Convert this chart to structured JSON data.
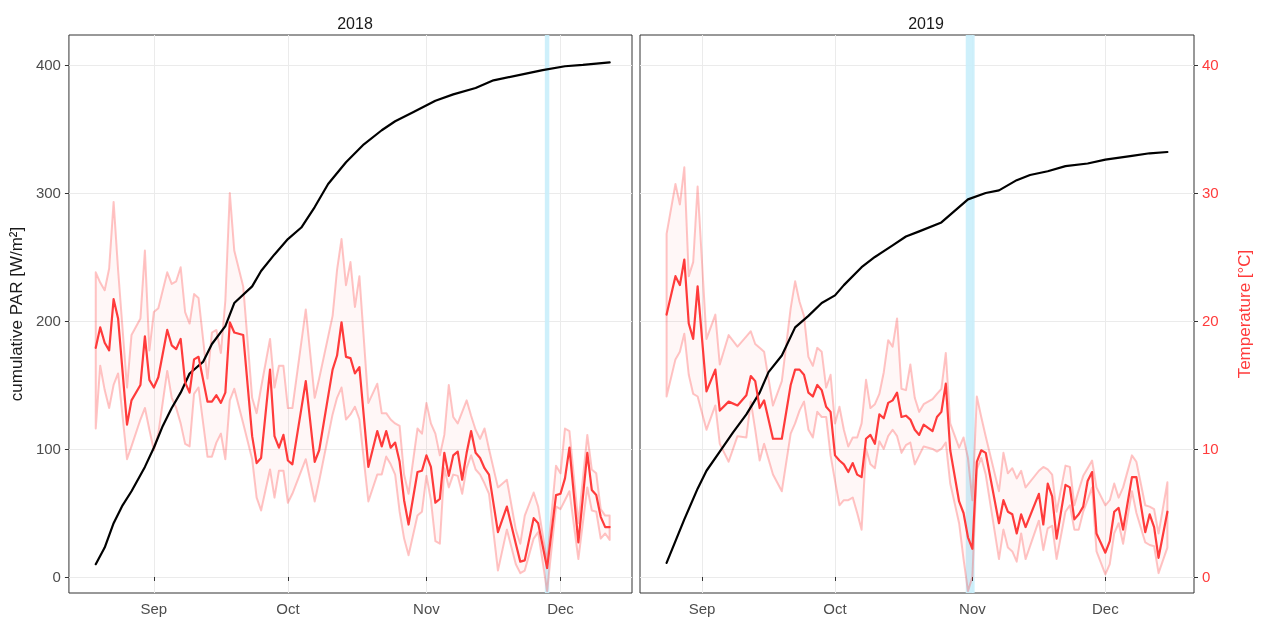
{
  "chart_data": [
    {
      "type": "line",
      "title": "2018",
      "ylabel": "cumulative PAR [W/m²]",
      "xlim": [
        "2018-08-13",
        "2018-12-17"
      ],
      "xticks": [
        {
          "value": "2018-09-01",
          "label": "Sep"
        },
        {
          "value": "2018-10-01",
          "label": "Oct"
        },
        {
          "value": "2018-11-01",
          "label": "Nov"
        },
        {
          "value": "2018-12-01",
          "label": "Dec"
        }
      ],
      "ylim": [
        -12.5,
        423.4
      ],
      "yticks": [
        0,
        100,
        200,
        300,
        400
      ],
      "y2lim": [
        -1.25,
        42.34
      ],
      "grid": true,
      "marker": "none",
      "bands": [
        {
          "axis": "x",
          "from": "2018-11-27T12:00",
          "to": "2018-11-28T12:00",
          "color": "#c9eefb"
        }
      ],
      "series": [
        {
          "color": "#000000",
          "x": [
            "2018-08-19",
            "2018-08-21",
            "2018-08-23",
            "2018-08-25",
            "2018-08-27",
            "2018-08-30",
            "2018-09-01",
            "2018-09-03",
            "2018-09-05",
            "2018-09-07",
            "2018-09-09",
            "2018-09-12",
            "2018-09-14",
            "2018-09-17",
            "2018-09-19",
            "2018-09-23",
            "2018-09-25",
            "2018-09-28",
            "2018-10-01",
            "2018-10-04",
            "2018-10-07",
            "2018-10-10",
            "2018-10-14",
            "2018-10-18",
            "2018-10-22",
            "2018-10-25",
            "2018-10-29",
            "2018-11-03",
            "2018-11-07",
            "2018-11-12",
            "2018-11-16",
            "2018-11-23",
            "2018-11-27",
            "2018-12-02",
            "2018-12-06",
            "2018-12-12"
          ],
          "values": [
            10,
            23,
            42,
            56,
            67,
            86,
            101,
            118,
            132,
            144,
            159,
            168,
            182,
            196,
            214,
            227,
            239,
            252,
            264,
            273,
            289,
            307,
            324,
            338,
            349,
            356,
            363,
            372,
            377,
            382,
            388,
            393,
            396,
            399,
            400,
            402
          ]
        },
        {
          "color": "#ff3b3b",
          "axis": "y2",
          "x": [
            "2018-08-19",
            "2018-08-20",
            "2018-08-21",
            "2018-08-22",
            "2018-08-23",
            "2018-08-24",
            "2018-08-26",
            "2018-08-27",
            "2018-08-29",
            "2018-08-30",
            "2018-08-31",
            "2018-09-01",
            "2018-09-02",
            "2018-09-04",
            "2018-09-05",
            "2018-09-06",
            "2018-09-07",
            "2018-09-08",
            "2018-09-09",
            "2018-09-10",
            "2018-09-11",
            "2018-09-13",
            "2018-09-14",
            "2018-09-15",
            "2018-09-16",
            "2018-09-17",
            "2018-09-18",
            "2018-09-19",
            "2018-09-21",
            "2018-09-23",
            "2018-09-24",
            "2018-09-25",
            "2018-09-27",
            "2018-09-28",
            "2018-09-29",
            "2018-09-30",
            "2018-10-01",
            "2018-10-02",
            "2018-10-05",
            "2018-10-07",
            "2018-10-08",
            "2018-10-11",
            "2018-10-12",
            "2018-10-13",
            "2018-10-14",
            "2018-10-15",
            "2018-10-16",
            "2018-10-17",
            "2018-10-19",
            "2018-10-21",
            "2018-10-22",
            "2018-10-23",
            "2018-10-24",
            "2018-10-25",
            "2018-10-26",
            "2018-10-27",
            "2018-10-28",
            "2018-10-30",
            "2018-10-31",
            "2018-11-01",
            "2018-11-02",
            "2018-11-03",
            "2018-11-04",
            "2018-11-05",
            "2018-11-06",
            "2018-11-07",
            "2018-11-08",
            "2018-11-09",
            "2018-11-10",
            "2018-11-11",
            "2018-11-12",
            "2018-11-13",
            "2018-11-14",
            "2018-11-15",
            "2018-11-17",
            "2018-11-19",
            "2018-11-21",
            "2018-11-22",
            "2018-11-23",
            "2018-11-25",
            "2018-11-26",
            "2018-11-28",
            "2018-11-30",
            "2018-12-01",
            "2018-12-02",
            "2018-12-03",
            "2018-12-05",
            "2018-12-07",
            "2018-12-08",
            "2018-12-09",
            "2018-12-10",
            "2018-12-11",
            "2018-12-12"
          ],
          "values": [
            17.9,
            19.5,
            18.3,
            17.7,
            21.7,
            20.2,
            11.9,
            13.8,
            15.0,
            18.8,
            15.4,
            14.8,
            15.6,
            19.3,
            18.1,
            17.8,
            18.6,
            15.2,
            14.4,
            17.0,
            17.2,
            13.7,
            13.7,
            14.2,
            13.6,
            14.4,
            19.9,
            19.1,
            18.9,
            11.0,
            8.9,
            9.3,
            16.2,
            11.0,
            10.1,
            11.1,
            9.1,
            8.8,
            15.3,
            9.0,
            9.9,
            16.2,
            17.3,
            19.9,
            17.2,
            17.1,
            15.9,
            16.4,
            8.6,
            11.4,
            10.2,
            11.4,
            10.1,
            10.5,
            9.0,
            6.0,
            4.1,
            8.2,
            8.3,
            9.5,
            8.6,
            5.8,
            6.1,
            9.7,
            7.9,
            9.5,
            9.8,
            7.6,
            9.7,
            11.4,
            9.7,
            9.3,
            8.5,
            8.0,
            3.5,
            5.5,
            2.6,
            1.2,
            1.3,
            4.6,
            4.2,
            0.7,
            6.4,
            6.5,
            7.7,
            10.1,
            2.7,
            9.7,
            6.8,
            6.4,
            4.7,
            3.9,
            3.9
          ],
          "upper": [
            23.8,
            23.0,
            22.4,
            24.1,
            29.3,
            24.0,
            14.8,
            18.9,
            20.2,
            25.5,
            17.7,
            20.7,
            21.0,
            23.8,
            22.9,
            23.1,
            24.2,
            20.7,
            19.8,
            22.1,
            21.8,
            15.5,
            19.1,
            19.3,
            17.5,
            21.6,
            30.0,
            25.5,
            22.7,
            14.0,
            12.8,
            14.8,
            18.6,
            14.8,
            16.5,
            16.5,
            13.2,
            13.2,
            20.9,
            14.0,
            15.5,
            20.4,
            24.0,
            26.4,
            22.8,
            24.6,
            21.1,
            23.5,
            13.6,
            15.1,
            12.8,
            12.8,
            12.3,
            12.0,
            11.8,
            8.0,
            6.5,
            11.6,
            11.2,
            13.6,
            12.0,
            11.2,
            9.5,
            11.1,
            15.0,
            12.5,
            12.0,
            12.9,
            13.8,
            12.6,
            11.5,
            10.8,
            11.6,
            10.0,
            7.0,
            7.6,
            3.7,
            2.6,
            4.8,
            6.6,
            5.5,
            1.2,
            8.7,
            8.1,
            11.6,
            11.4,
            4.2,
            11.1,
            8.4,
            8.1,
            5.3,
            4.8,
            4.8
          ],
          "lower": [
            11.6,
            16.5,
            14.6,
            13.2,
            15.0,
            15.9,
            9.2,
            10.2,
            12.3,
            13.2,
            11.5,
            9.9,
            11.2,
            16.1,
            14.0,
            13.2,
            12.0,
            10.4,
            10.2,
            14.3,
            14.8,
            9.4,
            9.4,
            10.5,
            11.2,
            9.2,
            13.8,
            14.7,
            12.0,
            9.2,
            6.2,
            5.2,
            8.4,
            6.2,
            8.3,
            8.3,
            5.8,
            6.5,
            9.2,
            5.9,
            7.5,
            12.7,
            14.0,
            14.8,
            12.3,
            12.7,
            13.3,
            12.3,
            5.9,
            8.0,
            8.0,
            9.4,
            8.8,
            8.0,
            5.1,
            3.0,
            1.7,
            4.8,
            5.1,
            7.9,
            6.0,
            2.8,
            2.6,
            8.5,
            7.0,
            8.0,
            7.9,
            6.5,
            8.5,
            9.5,
            8.4,
            8.0,
            7.3,
            6.5,
            0.5,
            3.7,
            1.0,
            0.3,
            0.5,
            3.0,
            3.5,
            -1.1,
            5.5,
            5.3,
            6.0,
            6.7,
            1.4,
            7.0,
            5.2,
            5.1,
            3.0,
            3.4,
            2.9
          ]
        }
      ]
    },
    {
      "type": "line",
      "title": "2019",
      "y2label": "Temperature [°C]",
      "xlim": [
        "2019-08-18",
        "2019-12-21"
      ],
      "xticks": [
        {
          "value": "2019-09-01",
          "label": "Sep"
        },
        {
          "value": "2019-10-01",
          "label": "Oct"
        },
        {
          "value": "2019-11-01",
          "label": "Nov"
        },
        {
          "value": "2019-12-01",
          "label": "Dec"
        }
      ],
      "ylim": [
        -12.5,
        423.4
      ],
      "y2lim": [
        -1.25,
        42.34
      ],
      "y2ticks": [
        0,
        10,
        20,
        30,
        40
      ],
      "grid": true,
      "marker": "none",
      "bands": [
        {
          "axis": "x",
          "from": "2019-10-30T12:00",
          "to": "2019-11-01T12:00",
          "color": "#c9eefb"
        }
      ],
      "series": [
        {
          "color": "#000000",
          "x": [
            "2019-08-24",
            "2019-08-26",
            "2019-08-28",
            "2019-08-31",
            "2019-09-02",
            "2019-09-05",
            "2019-09-08",
            "2019-09-11",
            "2019-09-14",
            "2019-09-16",
            "2019-09-19",
            "2019-09-22",
            "2019-09-25",
            "2019-09-28",
            "2019-10-01",
            "2019-10-03",
            "2019-10-07",
            "2019-10-10",
            "2019-10-14",
            "2019-10-17",
            "2019-10-20",
            "2019-10-25",
            "2019-10-28",
            "2019-10-31",
            "2019-11-04",
            "2019-11-07",
            "2019-11-11",
            "2019-11-14",
            "2019-11-18",
            "2019-11-22",
            "2019-11-27",
            "2019-12-01",
            "2019-12-07",
            "2019-12-11",
            "2019-12-15"
          ],
          "values": [
            11,
            28,
            45,
            69,
            83,
            98,
            113,
            127,
            144,
            160,
            173,
            195,
            204,
            214,
            220,
            228,
            242,
            250,
            259,
            266,
            270,
            277,
            286,
            295,
            300,
            302,
            310,
            314,
            317,
            321,
            323,
            326,
            329,
            331,
            332
          ]
        },
        {
          "color": "#ff3b3b",
          "axis": "y2",
          "x": [
            "2019-08-24",
            "2019-08-26",
            "2019-08-27",
            "2019-08-28",
            "2019-08-29",
            "2019-08-30",
            "2019-08-31",
            "2019-09-02",
            "2019-09-04",
            "2019-09-05",
            "2019-09-07",
            "2019-09-09",
            "2019-09-11",
            "2019-09-12",
            "2019-09-13",
            "2019-09-14",
            "2019-09-15",
            "2019-09-17",
            "2019-09-19",
            "2019-09-21",
            "2019-09-22",
            "2019-09-23",
            "2019-09-24",
            "2019-09-25",
            "2019-09-26",
            "2019-09-27",
            "2019-09-28",
            "2019-09-29",
            "2019-09-30",
            "2019-10-01",
            "2019-10-02",
            "2019-10-03",
            "2019-10-04",
            "2019-10-05",
            "2019-10-06",
            "2019-10-07",
            "2019-10-08",
            "2019-10-09",
            "2019-10-10",
            "2019-10-11",
            "2019-10-12",
            "2019-10-13",
            "2019-10-14",
            "2019-10-15",
            "2019-10-16",
            "2019-10-17",
            "2019-10-18",
            "2019-10-19",
            "2019-10-20",
            "2019-10-21",
            "2019-10-23",
            "2019-10-24",
            "2019-10-25",
            "2019-10-26",
            "2019-10-27",
            "2019-10-29",
            "2019-10-30",
            "2019-10-31",
            "2019-11-01",
            "2019-11-02",
            "2019-11-03",
            "2019-11-04",
            "2019-11-07",
            "2019-11-08",
            "2019-11-09",
            "2019-11-10",
            "2019-11-11",
            "2019-11-12",
            "2019-11-13",
            "2019-11-16",
            "2019-11-17",
            "2019-11-18",
            "2019-11-19",
            "2019-11-20",
            "2019-11-22",
            "2019-11-23",
            "2019-11-24",
            "2019-11-25",
            "2019-11-26",
            "2019-11-27",
            "2019-11-28",
            "2019-11-29",
            "2019-12-01",
            "2019-12-02",
            "2019-12-03",
            "2019-12-04",
            "2019-12-05",
            "2019-12-07",
            "2019-12-08",
            "2019-12-10",
            "2019-12-11",
            "2019-12-12",
            "2019-12-13",
            "2019-12-15"
          ],
          "values": [
            20.5,
            23.5,
            22.8,
            24.8,
            19.8,
            18.6,
            22.7,
            14.5,
            16.2,
            13.0,
            13.7,
            13.4,
            14.2,
            15.7,
            15.3,
            13.2,
            13.8,
            10.8,
            10.8,
            15.0,
            16.2,
            16.2,
            15.8,
            14.4,
            14.1,
            15.0,
            14.6,
            13.3,
            12.9,
            9.5,
            9.1,
            8.8,
            8.2,
            8.9,
            8.0,
            7.8,
            10.8,
            11.1,
            10.4,
            12.7,
            12.4,
            13.6,
            13.8,
            14.4,
            12.5,
            12.6,
            12.3,
            11.5,
            11.1,
            11.9,
            11.4,
            12.5,
            12.9,
            15.1,
            9.9,
            5.9,
            5.0,
            3.1,
            2.2,
            9.0,
            9.9,
            9.7,
            4.2,
            6.0,
            5.1,
            4.9,
            3.4,
            4.9,
            3.9,
            6.5,
            4.1,
            7.3,
            6.3,
            3.0,
            7.2,
            7.0,
            4.5,
            4.9,
            5.5,
            7.5,
            8.2,
            3.4,
            1.9,
            2.8,
            5.1,
            5.4,
            3.7,
            7.8,
            7.8,
            3.5,
            4.9,
            3.9,
            1.5,
            5.1
          ],
          "upper": [
            26.8,
            30.7,
            29.1,
            32.0,
            23.5,
            24.6,
            30.5,
            18.6,
            20.5,
            16.6,
            18.9,
            18.0,
            18.8,
            19.2,
            18.2,
            17.9,
            17.6,
            13.4,
            15.3,
            21.0,
            23.1,
            21.5,
            20.4,
            17.2,
            16.5,
            17.9,
            17.6,
            14.8,
            15.8,
            12.0,
            13.3,
            11.5,
            10.2,
            10.9,
            10.9,
            12.0,
            15.4,
            13.2,
            13.5,
            14.3,
            16.0,
            18.5,
            18.0,
            20.2,
            14.7,
            14.6,
            16.6,
            14.0,
            12.9,
            13.5,
            13.9,
            14.3,
            14.7,
            17.5,
            12.0,
            10.1,
            10.9,
            9.3,
            6.0,
            14.1,
            12.5,
            11.0,
            6.7,
            9.7,
            8.1,
            8.5,
            7.7,
            8.3,
            7.0,
            8.3,
            8.6,
            8.4,
            8.0,
            5.1,
            8.7,
            8.6,
            5.6,
            6.8,
            7.9,
            8.5,
            9.1,
            7.0,
            5.6,
            6.0,
            7.3,
            6.2,
            7.0,
            9.5,
            9.0,
            5.6,
            5.5,
            5.3,
            3.4,
            7.4
          ],
          "lower": [
            14.1,
            17.0,
            17.6,
            19.0,
            15.8,
            14.3,
            14.1,
            11.5,
            13.4,
            10.4,
            9.0,
            11.0,
            10.9,
            13.7,
            11.5,
            9.1,
            10.4,
            8.0,
            6.7,
            11.2,
            12.0,
            13.0,
            13.7,
            11.5,
            10.9,
            12.9,
            12.5,
            12.5,
            9.5,
            7.5,
            5.6,
            6.0,
            6.0,
            6.2,
            5.0,
            3.7,
            10.0,
            8.8,
            8.5,
            10.6,
            10.0,
            11.0,
            11.5,
            11.0,
            9.7,
            10.3,
            10.5,
            8.8,
            9.5,
            10.2,
            10.0,
            9.8,
            10.0,
            10.5,
            7.3,
            4.2,
            1.4,
            -1.1,
            0.0,
            8.4,
            9.3,
            8.0,
            1.4,
            3.7,
            2.3,
            2.0,
            1.2,
            3.4,
            1.4,
            4.4,
            2.1,
            3.8,
            4.0,
            1.4,
            5.1,
            5.6,
            3.7,
            3.7,
            5.1,
            6.0,
            7.0,
            2.0,
            0.2,
            1.0,
            3.4,
            4.2,
            2.6,
            6.7,
            5.0,
            2.7,
            2.5,
            2.4,
            0.3,
            2.3
          ]
        }
      ]
    }
  ]
}
